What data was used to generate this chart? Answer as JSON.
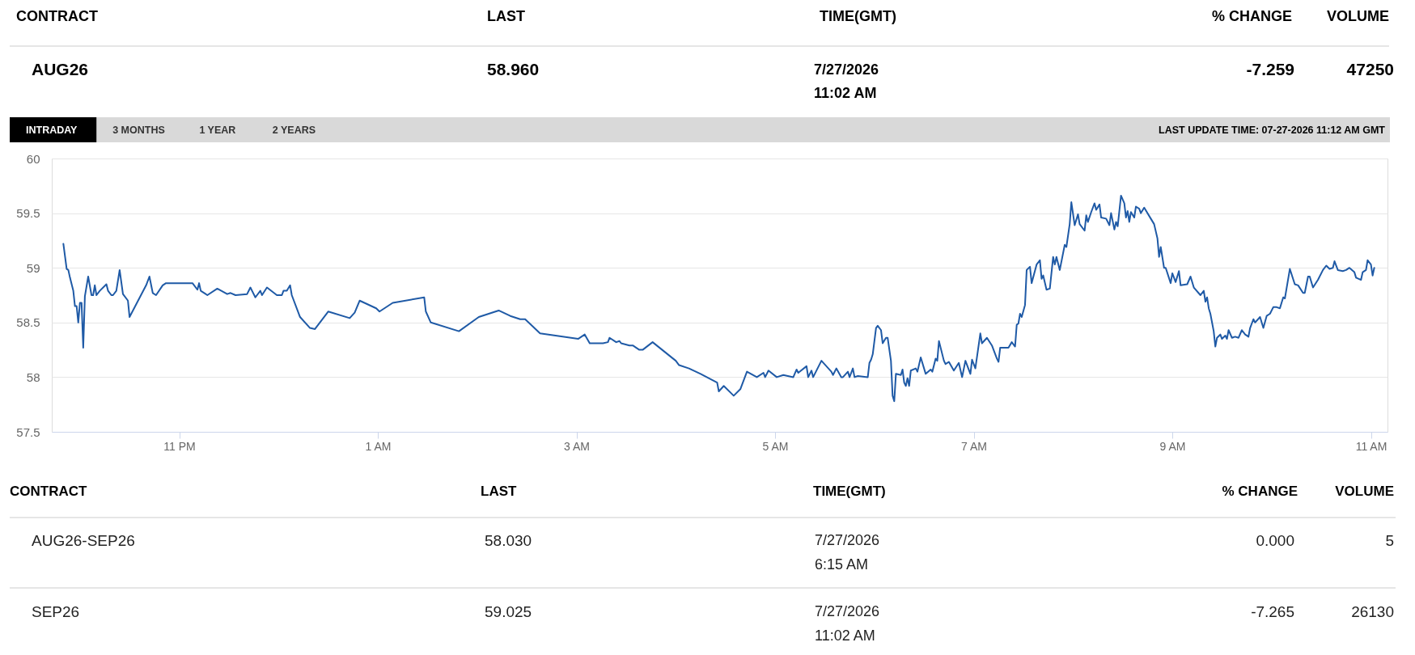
{
  "chart_data": [
    {
      "type": "other",
      "categories": [
        "CONTRACT",
        "LAST",
        "TIME(GMT)",
        "% CHANGE",
        "VOLUME"
      ],
      "annotations": [
        "AUG26",
        "58.960",
        "7/27/2026\n11:02 AM",
        "-7.259",
        "47250"
      ]
    },
    {
      "type": "line",
      "color": "#1f5aa6",
      "grid": "y",
      "annotations": [
        "INTRADAY",
        "3 MONTHS",
        "1 YEAR",
        "2 YEARS",
        "LAST UPDATE TIME: 07-27-2026 11:12 AM GMT"
      ],
      "xlim": [
        "2026-07-26T21:43",
        "2026-07-27T11:10"
      ],
      "xticks": [
        {
          "value": "2026-07-26T23:00",
          "label": "11 PM"
        },
        {
          "value": "2026-07-27T01:00",
          "label": "1 AM"
        },
        {
          "value": "2026-07-27T03:00",
          "label": "3 AM"
        },
        {
          "value": "2026-07-27T05:00",
          "label": "5 AM"
        },
        {
          "value": "2026-07-27T07:00",
          "label": "7 AM"
        },
        {
          "value": "2026-07-27T09:00",
          "label": "9 AM"
        },
        {
          "value": "2026-07-27T11:00",
          "label": "11 AM"
        }
      ],
      "ylim": [
        57.5,
        60
      ],
      "yticks": [
        57.5,
        58,
        58.5,
        59,
        59.5,
        60
      ],
      "x": [
        "2026-07-26T21:50",
        "2026-07-26T21:52",
        "2026-07-26T21:53",
        "2026-07-26T21:54",
        "2026-07-26T21:56",
        "2026-07-26T21:57",
        "2026-07-26T21:58",
        "2026-07-26T21:59",
        "2026-07-26T22:00",
        "2026-07-26T22:01",
        "2026-07-26T22:02",
        "2026-07-26T22:03",
        "2026-07-26T22:05",
        "2026-07-26T22:07",
        "2026-07-26T22:08",
        "2026-07-26T22:09",
        "2026-07-26T22:10",
        "2026-07-26T22:12",
        "2026-07-26T22:16",
        "2026-07-26T22:17",
        "2026-07-26T22:19",
        "2026-07-26T22:20",
        "2026-07-26T22:22",
        "2026-07-26T22:24",
        "2026-07-26T22:26",
        "2026-07-26T22:29",
        "2026-07-26T22:30",
        "2026-07-26T22:40",
        "2026-07-26T22:42",
        "2026-07-26T22:44",
        "2026-07-26T22:46",
        "2026-07-26T22:50",
        "2026-07-26T22:52",
        "2026-07-26T23:08",
        "2026-07-26T23:11",
        "2026-07-26T23:12",
        "2026-07-26T23:13",
        "2026-07-26T23:17",
        "2026-07-26T23:23",
        "2026-07-26T23:29",
        "2026-07-26T23:31",
        "2026-07-26T23:34",
        "2026-07-26T23:41",
        "2026-07-26T23:43",
        "2026-07-26T23:44",
        "2026-07-26T23:46",
        "2026-07-26T23:47",
        "2026-07-26T23:49",
        "2026-07-26T23:50",
        "2026-07-26T23:53",
        "2026-07-26T23:59",
        "2026-07-27T00:02",
        "2026-07-27T00:03",
        "2026-07-27T00:05",
        "2026-07-27T00:07",
        "2026-07-27T00:08",
        "2026-07-27T00:13",
        "2026-07-27T00:19",
        "2026-07-27T00:22",
        "2026-07-27T00:30",
        "2026-07-27T00:43",
        "2026-07-27T00:46",
        "2026-07-27T00:49",
        "2026-07-27T00:59",
        "2026-07-27T01:01",
        "2026-07-27T01:09",
        "2026-07-27T01:28",
        "2026-07-27T01:29",
        "2026-07-27T01:32",
        "2026-07-27T01:49",
        "2026-07-27T02:01",
        "2026-07-27T02:13",
        "2026-07-27T02:20",
        "2026-07-27T02:26",
        "2026-07-27T02:29",
        "2026-07-27T02:38",
        "2026-07-27T03:01",
        "2026-07-27T03:05",
        "2026-07-27T03:08",
        "2026-07-27T03:16",
        "2026-07-27T03:19",
        "2026-07-27T03:20",
        "2026-07-27T03:24",
        "2026-07-27T03:26",
        "2026-07-27T03:27",
        "2026-07-27T03:32",
        "2026-07-27T03:34",
        "2026-07-27T03:38",
        "2026-07-27T03:40",
        "2026-07-27T03:46",
        "2026-07-27T04:00",
        "2026-07-27T04:02",
        "2026-07-27T04:08",
        "2026-07-27T04:15",
        "2026-07-27T04:25",
        "2026-07-27T04:26",
        "2026-07-27T04:29",
        "2026-07-27T04:35",
        "2026-07-27T04:39",
        "2026-07-27T04:43",
        "2026-07-27T04:49",
        "2026-07-27T04:53",
        "2026-07-27T04:54",
        "2026-07-27T04:56",
        "2026-07-27T05:01",
        "2026-07-27T05:05",
        "2026-07-27T05:11",
        "2026-07-27T05:13",
        "2026-07-27T05:14",
        "2026-07-27T05:19",
        "2026-07-27T05:20",
        "2026-07-27T05:22",
        "2026-07-27T05:23",
        "2026-07-27T05:28",
        "2026-07-27T05:34",
        "2026-07-27T05:35",
        "2026-07-27T05:37",
        "2026-07-27T05:40",
        "2026-07-27T05:41",
        "2026-07-27T05:44",
        "2026-07-27T05:45",
        "2026-07-27T05:47",
        "2026-07-27T05:48",
        "2026-07-27T05:50",
        "2026-07-27T05:56",
        "2026-07-27T05:57",
        "2026-07-27T05:58",
        "2026-07-27T05:59",
        "2026-07-27T06:01",
        "2026-07-27T06:02",
        "2026-07-27T06:04",
        "2026-07-27T06:05",
        "2026-07-27T06:07",
        "2026-07-27T06:08",
        "2026-07-27T06:10",
        "2026-07-27T06:11",
        "2026-07-27T06:12",
        "2026-07-27T06:13",
        "2026-07-27T06:16",
        "2026-07-27T06:17",
        "2026-07-27T06:18",
        "2026-07-27T06:19",
        "2026-07-27T06:20",
        "2026-07-27T06:21",
        "2026-07-27T06:22",
        "2026-07-27T06:25",
        "2026-07-27T06:26",
        "2026-07-27T06:28",
        "2026-07-27T06:31",
        "2026-07-27T06:34",
        "2026-07-27T06:35",
        "2026-07-27T06:37",
        "2026-07-27T06:38",
        "2026-07-27T06:39",
        "2026-07-27T06:42",
        "2026-07-27T06:43",
        "2026-07-27T06:45",
        "2026-07-27T06:48",
        "2026-07-27T06:51",
        "2026-07-27T06:53",
        "2026-07-27T06:55",
        "2026-07-27T06:58",
        "2026-07-27T06:59",
        "2026-07-27T07:01",
        "2026-07-27T07:04",
        "2026-07-27T07:05",
        "2026-07-27T07:08",
        "2026-07-27T07:11",
        "2026-07-27T07:14",
        "2026-07-27T07:15",
        "2026-07-27T07:16",
        "2026-07-27T07:18",
        "2026-07-27T07:21",
        "2026-07-27T07:23",
        "2026-07-27T07:25",
        "2026-07-27T07:26",
        "2026-07-27T07:27",
        "2026-07-27T07:28",
        "2026-07-27T07:29",
        "2026-07-27T07:31",
        "2026-07-27T07:32",
        "2026-07-27T07:34",
        "2026-07-27T07:35",
        "2026-07-27T07:38",
        "2026-07-27T07:40",
        "2026-07-27T07:41",
        "2026-07-27T07:42",
        "2026-07-27T07:44",
        "2026-07-27T07:46",
        "2026-07-27T07:48",
        "2026-07-27T07:49",
        "2026-07-27T07:50",
        "2026-07-27T07:52",
        "2026-07-27T07:55",
        "2026-07-27T07:56",
        "2026-07-27T07:58",
        "2026-07-27T07:59",
        "2026-07-27T08:01",
        "2026-07-27T08:03",
        "2026-07-27T08:04",
        "2026-07-27T08:07",
        "2026-07-27T08:08",
        "2026-07-27T08:09",
        "2026-07-27T08:11",
        "2026-07-27T08:13",
        "2026-07-27T08:14",
        "2026-07-27T08:16",
        "2026-07-27T08:17",
        "2026-07-27T08:20",
        "2026-07-27T08:22",
        "2026-07-27T08:23",
        "2026-07-27T08:25",
        "2026-07-27T08:26",
        "2026-07-27T08:27",
        "2026-07-27T08:29",
        "2026-07-27T08:31",
        "2026-07-27T08:32",
        "2026-07-27T08:33",
        "2026-07-27T08:34",
        "2026-07-27T08:35",
        "2026-07-27T08:37",
        "2026-07-27T08:38",
        "2026-07-27T08:40",
        "2026-07-27T08:41",
        "2026-07-27T08:43",
        "2026-07-27T08:47",
        "2026-07-27T08:49",
        "2026-07-27T08:51",
        "2026-07-27T08:52",
        "2026-07-27T08:53",
        "2026-07-27T08:55",
        "2026-07-27T08:56",
        "2026-07-27T08:59",
        "2026-07-27T09:00",
        "2026-07-27T09:02",
        "2026-07-27T09:04",
        "2026-07-27T09:05",
        "2026-07-27T09:09",
        "2026-07-27T09:11",
        "2026-07-27T09:13",
        "2026-07-27T09:17",
        "2026-07-27T09:19",
        "2026-07-27T09:20",
        "2026-07-27T09:21",
        "2026-07-27T09:22",
        "2026-07-27T09:23",
        "2026-07-27T09:25",
        "2026-07-27T09:26",
        "2026-07-27T09:27",
        "2026-07-27T09:29",
        "2026-07-27T09:30",
        "2026-07-27T09:32",
        "2026-07-27T09:33",
        "2026-07-27T09:34",
        "2026-07-27T09:36",
        "2026-07-27T09:38",
        "2026-07-27T09:40",
        "2026-07-27T09:42",
        "2026-07-27T09:44",
        "2026-07-27T09:46",
        "2026-07-27T09:47",
        "2026-07-27T09:49",
        "2026-07-27T09:50",
        "2026-07-27T09:53",
        "2026-07-27T09:55",
        "2026-07-27T09:57",
        "2026-07-27T09:59",
        "2026-07-27T10:01",
        "2026-07-27T10:03",
        "2026-07-27T10:05",
        "2026-07-27T10:07",
        "2026-07-27T10:08",
        "2026-07-27T10:11",
        "2026-07-27T10:14",
        "2026-07-27T10:16",
        "2026-07-27T10:19",
        "2026-07-27T10:20",
        "2026-07-27T10:22",
        "2026-07-27T10:23",
        "2026-07-27T10:25",
        "2026-07-27T10:28",
        "2026-07-27T10:31",
        "2026-07-27T10:33",
        "2026-07-27T10:35",
        "2026-07-27T10:37",
        "2026-07-27T10:38",
        "2026-07-27T10:40",
        "2026-07-27T10:43",
        "2026-07-27T10:45",
        "2026-07-27T10:47",
        "2026-07-27T10:50",
        "2026-07-27T10:51",
        "2026-07-27T10:54",
        "2026-07-27T10:55",
        "2026-07-27T10:57",
        "2026-07-27T10:58",
        "2026-07-27T11:00",
        "2026-07-27T11:01",
        "2026-07-27T11:02"
      ],
      "values": [
        59.22,
        58.99,
        58.98,
        58.91,
        58.79,
        58.65,
        58.65,
        58.5,
        58.68,
        58.68,
        58.27,
        58.74,
        58.92,
        58.75,
        58.75,
        58.84,
        58.75,
        58.79,
        58.85,
        58.79,
        58.75,
        58.75,
        58.79,
        58.98,
        58.76,
        58.7,
        58.55,
        58.84,
        58.92,
        58.77,
        58.75,
        58.84,
        58.86,
        58.86,
        58.8,
        58.86,
        58.79,
        58.75,
        58.81,
        58.76,
        58.77,
        58.75,
        58.76,
        58.82,
        58.79,
        58.73,
        58.75,
        58.79,
        58.75,
        58.82,
        58.75,
        58.75,
        58.79,
        58.79,
        58.84,
        58.75,
        58.55,
        58.45,
        58.44,
        58.6,
        58.54,
        58.59,
        58.7,
        58.63,
        58.6,
        58.68,
        58.73,
        58.6,
        58.5,
        58.42,
        58.55,
        58.61,
        58.56,
        58.53,
        58.53,
        58.4,
        58.35,
        58.39,
        58.31,
        58.31,
        58.32,
        58.36,
        58.32,
        58.33,
        58.31,
        58.29,
        58.29,
        58.25,
        58.25,
        58.32,
        58.15,
        58.11,
        58.08,
        58.03,
        57.95,
        57.87,
        57.92,
        57.83,
        57.89,
        58.05,
        58.0,
        58.04,
        58.0,
        58.06,
        58.0,
        58.02,
        58.0,
        58.07,
        58.04,
        58.1,
        58.0,
        58.06,
        58.0,
        58.15,
        58.05,
        58.02,
        58.08,
        58.0,
        58.0,
        58.05,
        58.0,
        58.08,
        58.0,
        58.01,
        58.0,
        58.13,
        58.16,
        58.21,
        58.45,
        58.47,
        58.43,
        58.31,
        58.36,
        58.36,
        58.15,
        57.83,
        57.78,
        58.03,
        58.02,
        58.07,
        57.95,
        57.92,
        57.99,
        57.92,
        58.06,
        58.08,
        58.05,
        58.18,
        58.03,
        58.07,
        58.05,
        58.17,
        58.15,
        58.33,
        58.15,
        58.12,
        58.14,
        58.06,
        58.13,
        58.0,
        58.15,
        58.03,
        58.16,
        58.08,
        58.4,
        58.31,
        58.36,
        58.29,
        58.17,
        58.14,
        58.27,
        58.27,
        58.27,
        58.32,
        58.28,
        58.48,
        58.49,
        58.58,
        58.55,
        58.66,
        58.98,
        59.01,
        58.86,
        59.03,
        59.07,
        58.9,
        58.93,
        58.8,
        58.81,
        59.1,
        59.03,
        59.1,
        58.98,
        59.21,
        59.19,
        59.4,
        59.6,
        59.39,
        59.49,
        59.4,
        59.34,
        59.48,
        59.42,
        59.51,
        59.59,
        59.53,
        59.58,
        59.46,
        59.45,
        59.39,
        59.5,
        59.35,
        59.42,
        59.38,
        59.66,
        59.59,
        59.46,
        59.52,
        59.42,
        59.51,
        59.46,
        59.56,
        59.54,
        59.5,
        59.55,
        59.45,
        59.4,
        59.27,
        59.1,
        59.19,
        59.0,
        59.0,
        58.86,
        58.95,
        58.87,
        58.97,
        58.84,
        58.85,
        58.92,
        58.82,
        58.75,
        58.79,
        58.69,
        58.73,
        58.63,
        58.58,
        58.42,
        58.28,
        58.36,
        58.39,
        58.35,
        58.38,
        58.35,
        58.43,
        58.36,
        58.37,
        58.36,
        58.43,
        58.39,
        58.37,
        58.45,
        58.53,
        58.5,
        58.55,
        58.45,
        58.56,
        58.58,
        58.64,
        58.64,
        58.63,
        58.73,
        58.72,
        58.99,
        58.85,
        58.84,
        58.77,
        58.77,
        58.92,
        58.92,
        58.82,
        58.89,
        58.98,
        59.02,
        58.99,
        59.0,
        59.06,
        58.98,
        58.97,
        58.98,
        59.0,
        58.96,
        58.91,
        58.89,
        58.96,
        58.98,
        59.07,
        59.03,
        58.93,
        59.0
      ]
    },
    {
      "type": "other",
      "categories": [
        "CONTRACT",
        "LAST",
        "TIME(GMT)",
        "% CHANGE",
        "VOLUME"
      ],
      "annotations": [
        "AUG26-SEP26",
        "58.030",
        "7/27/2026\n6:15 AM",
        "0.000",
        "5",
        "SEP26",
        "59.025",
        "7/27/2026\n11:02 AM",
        "-7.265",
        "26130"
      ]
    }
  ]
}
